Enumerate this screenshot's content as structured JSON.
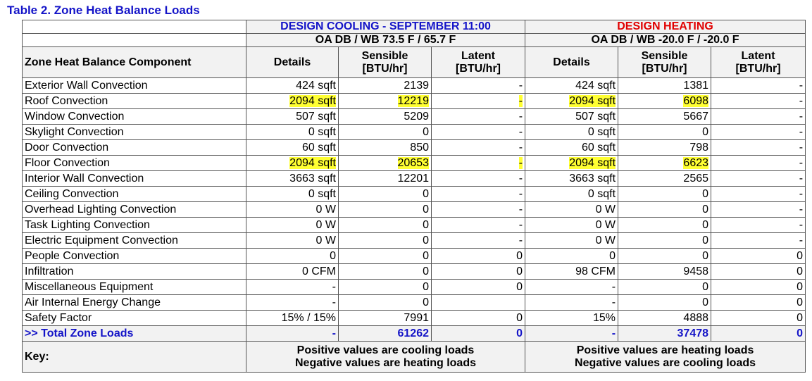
{
  "title": "Table 2. Zone Heat Balance Loads",
  "table": {
    "groups": [
      {
        "name": "DESIGN COOLING - SEPTEMBER 11:00",
        "conditions": "OA DB / WB   73.5 F / 65.7 F"
      },
      {
        "name": "DESIGN HEATING",
        "conditions": "OA DB / WB   -20.0 F / -20.0 F"
      }
    ],
    "columns": [
      "Zone Heat Balance Component",
      "Details",
      "Sensible\n[BTU/hr]",
      "Latent\n[BTU/hr]",
      "Details",
      "Sensible\n[BTU/hr]",
      "Latent\n[BTU/hr]"
    ],
    "rows": [
      [
        "Exterior Wall Convection",
        "424 sqft",
        2139,
        "-",
        "424 sqft",
        1381,
        "-"
      ],
      [
        "Roof Convection",
        "2094 sqft",
        12219,
        "-",
        "2094 sqft",
        6098,
        "-"
      ],
      [
        "Window Convection",
        "507 sqft",
        5209,
        "-",
        "507 sqft",
        5667,
        "-"
      ],
      [
        "Skylight Convection",
        "0 sqft",
        0,
        "-",
        "0 sqft",
        0,
        "-"
      ],
      [
        "Door Convection",
        "60 sqft",
        850,
        "-",
        "60 sqft",
        798,
        "-"
      ],
      [
        "Floor Convection",
        "2094 sqft",
        20653,
        "-",
        "2094 sqft",
        6623,
        "-"
      ],
      [
        "Interior Wall Convection",
        "3663 sqft",
        12201,
        "-",
        "3663 sqft",
        2565,
        "-"
      ],
      [
        "Ceiling Convection",
        "0 sqft",
        0,
        "-",
        "0 sqft",
        0,
        "-"
      ],
      [
        "Overhead Lighting Convection",
        "0 W",
        0,
        "-",
        "0 W",
        0,
        "-"
      ],
      [
        "Task Lighting Convection",
        "0 W",
        0,
        "-",
        "0 W",
        0,
        "-"
      ],
      [
        "Electric Equipment Convection",
        "0 W",
        0,
        "-",
        "0 W",
        0,
        "-"
      ],
      [
        "People Convection",
        0,
        0,
        0,
        0,
        0,
        0
      ],
      [
        "Infiltration",
        "0 CFM",
        0,
        0,
        "98 CFM",
        9458,
        0
      ],
      [
        "Miscellaneous Equipment",
        "-",
        0,
        0,
        "-",
        0,
        0
      ],
      [
        "Air Internal Energy Change",
        "-",
        0,
        null,
        "-",
        0,
        0
      ],
      [
        "Safety Factor",
        "15% / 15%",
        7991,
        0,
        "15%",
        4888,
        0
      ]
    ],
    "total": [
      ">> Total Zone Loads",
      "-",
      61262,
      0,
      "-",
      37478,
      0
    ],
    "key": {
      "label": "Key:",
      "notes": [
        [
          "Positive values are cooling loads",
          "Negative values are heating loads"
        ],
        [
          "Positive values are heating loads",
          "Negative values are cooling loads"
        ]
      ]
    }
  }
}
